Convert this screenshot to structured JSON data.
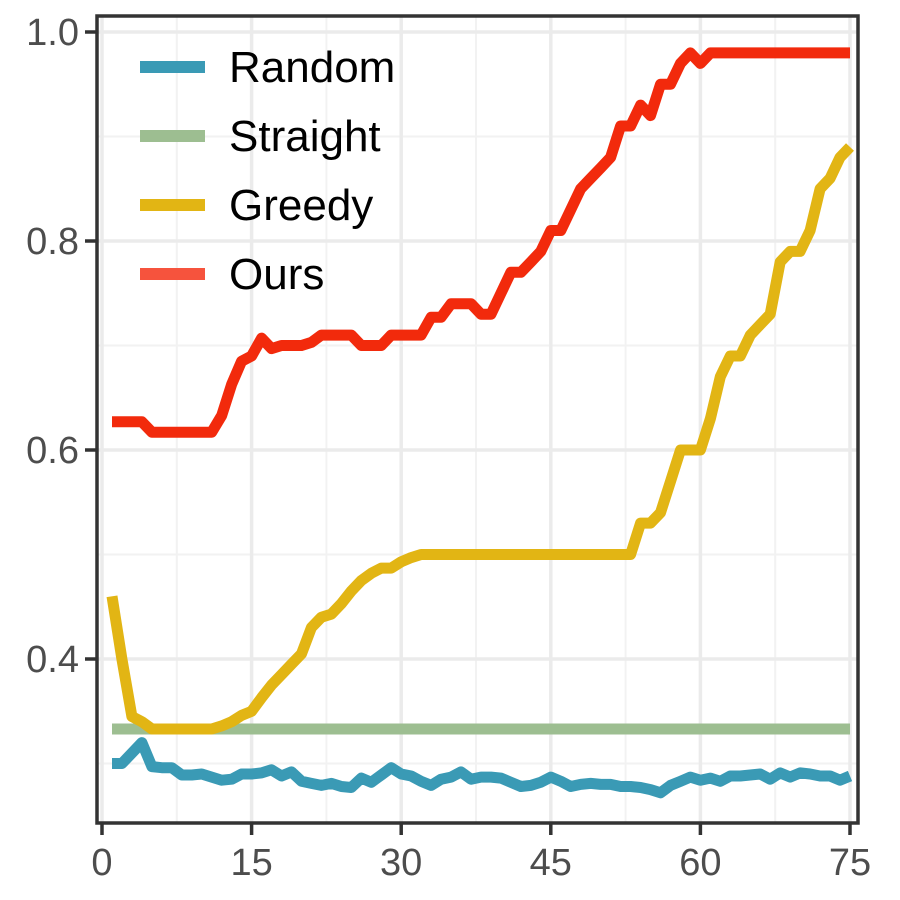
{
  "chart_data": {
    "type": "line",
    "title": "",
    "xlabel": "",
    "ylabel": "",
    "xlim": [
      0,
      75
    ],
    "ylim": [
      0.25,
      1.0
    ],
    "x_ticks": [
      "0",
      "15",
      "30",
      "45",
      "60",
      "75"
    ],
    "y_ticks": [
      "0.4",
      "0.6",
      "0.8",
      "1.0"
    ],
    "grid": true,
    "legend_position": "top-left",
    "series": [
      {
        "name": "Random",
        "color": "#3A9AB5",
        "x": [
          1,
          2,
          3,
          4,
          5,
          6,
          7,
          8,
          9,
          10,
          11,
          12,
          13,
          14,
          15,
          16,
          17,
          18,
          19,
          20,
          21,
          22,
          23,
          24,
          25,
          26,
          27,
          28,
          29,
          30,
          31,
          32,
          33,
          34,
          35,
          36,
          37,
          38,
          39,
          40,
          41,
          42,
          43,
          44,
          45,
          46,
          47,
          48,
          49,
          50,
          51,
          52,
          53,
          54,
          55,
          56,
          57,
          58,
          59,
          60,
          61,
          62,
          63,
          64,
          65,
          66,
          67,
          68,
          69,
          70,
          71,
          72,
          73,
          74,
          75
        ],
        "values": [
          0.3,
          0.3,
          0.31,
          0.32,
          0.297,
          0.296,
          0.296,
          0.289,
          0.289,
          0.29,
          0.287,
          0.284,
          0.285,
          0.29,
          0.29,
          0.291,
          0.294,
          0.288,
          0.292,
          0.283,
          0.281,
          0.279,
          0.281,
          0.278,
          0.277,
          0.286,
          0.282,
          0.289,
          0.296,
          0.29,
          0.288,
          0.283,
          0.279,
          0.285,
          0.287,
          0.292,
          0.285,
          0.287,
          0.287,
          0.286,
          0.282,
          0.278,
          0.279,
          0.282,
          0.287,
          0.283,
          0.278,
          0.28,
          0.281,
          0.28,
          0.28,
          0.278,
          0.278,
          0.277,
          0.275,
          0.272,
          0.279,
          0.283,
          0.287,
          0.284,
          0.286,
          0.283,
          0.288,
          0.288,
          0.289,
          0.29,
          0.285,
          0.291,
          0.287,
          0.291,
          0.29,
          0.288,
          0.288,
          0.284,
          0.288
        ]
      },
      {
        "name": "Straight",
        "color": "#9DBE91",
        "x": [
          1,
          75
        ],
        "values": [
          0.333,
          0.333
        ]
      },
      {
        "name": "Greedy",
        "color": "#E2B514",
        "x": [
          1,
          2,
          3,
          4,
          5,
          6,
          7,
          8,
          9,
          10,
          11,
          12,
          13,
          14,
          15,
          16,
          17,
          18,
          19,
          20,
          21,
          22,
          23,
          24,
          25,
          26,
          27,
          28,
          29,
          30,
          31,
          32,
          33,
          34,
          35,
          36,
          37,
          38,
          39,
          40,
          41,
          42,
          43,
          44,
          45,
          46,
          47,
          48,
          49,
          50,
          51,
          52,
          53,
          54,
          55,
          56,
          57,
          58,
          59,
          60,
          61,
          62,
          63,
          64,
          65,
          66,
          67,
          68,
          69,
          70,
          71,
          72,
          73,
          74,
          75
        ],
        "values": [
          0.46,
          0.4,
          0.345,
          0.34,
          0.333,
          0.333,
          0.333,
          0.333,
          0.333,
          0.333,
          0.333,
          0.336,
          0.34,
          0.346,
          0.35,
          0.363,
          0.375,
          0.385,
          0.395,
          0.405,
          0.43,
          0.44,
          0.443,
          0.453,
          0.465,
          0.475,
          0.482,
          0.487,
          0.487,
          0.493,
          0.497,
          0.5,
          0.5,
          0.5,
          0.5,
          0.5,
          0.5,
          0.5,
          0.5,
          0.5,
          0.5,
          0.5,
          0.5,
          0.5,
          0.5,
          0.5,
          0.5,
          0.5,
          0.5,
          0.5,
          0.5,
          0.5,
          0.5,
          0.53,
          0.53,
          0.54,
          0.57,
          0.6,
          0.6,
          0.6,
          0.63,
          0.67,
          0.69,
          0.69,
          0.71,
          0.72,
          0.73,
          0.78,
          0.79,
          0.79,
          0.81,
          0.85,
          0.86,
          0.88,
          0.89
        ]
      },
      {
        "name": "Ours",
        "color": "#F22A0C",
        "legend_color": "#F6533D",
        "x": [
          1,
          2,
          3,
          4,
          5,
          6,
          7,
          8,
          9,
          10,
          11,
          12,
          13,
          14,
          15,
          16,
          17,
          18,
          19,
          20,
          21,
          22,
          23,
          24,
          25,
          26,
          27,
          28,
          29,
          30,
          31,
          32,
          33,
          34,
          35,
          36,
          37,
          38,
          39,
          40,
          41,
          42,
          43,
          44,
          45,
          46,
          47,
          48,
          49,
          50,
          51,
          52,
          53,
          54,
          55,
          56,
          57,
          58,
          59,
          60,
          61,
          62,
          63,
          64,
          65,
          66,
          67,
          68,
          69,
          70,
          71,
          72,
          73,
          74,
          75
        ],
        "values": [
          0.627,
          0.627,
          0.627,
          0.627,
          0.617,
          0.617,
          0.617,
          0.617,
          0.617,
          0.617,
          0.617,
          0.633,
          0.663,
          0.685,
          0.69,
          0.707,
          0.697,
          0.7,
          0.7,
          0.7,
          0.703,
          0.71,
          0.71,
          0.71,
          0.71,
          0.7,
          0.7,
          0.7,
          0.71,
          0.71,
          0.71,
          0.71,
          0.727,
          0.727,
          0.74,
          0.74,
          0.74,
          0.73,
          0.73,
          0.75,
          0.77,
          0.77,
          0.78,
          0.79,
          0.81,
          0.81,
          0.83,
          0.85,
          0.86,
          0.87,
          0.88,
          0.91,
          0.91,
          0.93,
          0.92,
          0.95,
          0.95,
          0.97,
          0.98,
          0.97,
          0.98,
          0.98,
          0.98,
          0.98,
          0.98,
          0.98,
          0.98,
          0.98,
          0.98,
          0.98,
          0.98,
          0.98,
          0.98,
          0.98,
          0.98
        ]
      }
    ]
  }
}
